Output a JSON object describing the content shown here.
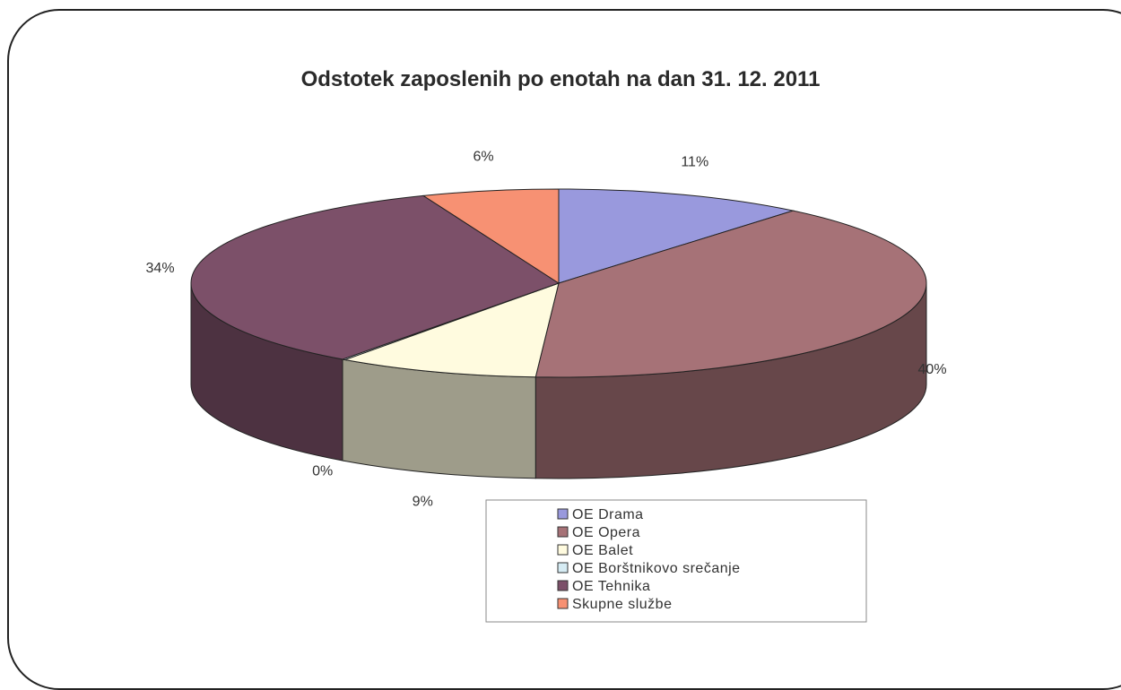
{
  "chart_data": {
    "type": "pie",
    "title": "Odstotek zaposlenih po enotah na dan 31. 12. 2011",
    "categories": [
      "OE Drama",
      "OE Opera",
      "OE Balet",
      "OE Borštnikovo srečanje",
      "OE Tehnika",
      "Skupne službe"
    ],
    "values": [
      11,
      40,
      9,
      0,
      34,
      6
    ],
    "data_labels": [
      "11%",
      "40%",
      "9%",
      "0%",
      "34%",
      "6%"
    ],
    "colors": [
      "#9999dd",
      "#a67277",
      "#fffbdf",
      "#d6ecf4",
      "#7c5069",
      "#f79173"
    ],
    "three_d": true,
    "legend_position": "bottom"
  }
}
